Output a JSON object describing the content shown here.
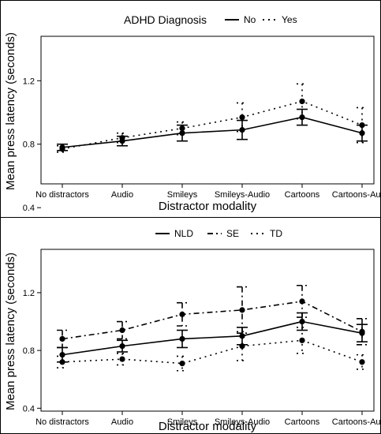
{
  "chart_data": [
    {
      "type": "line",
      "legend_title": "ADHD Diagnosis",
      "legend_placement": "top",
      "xlabel": "Distractor modality",
      "ylabel": "Mean press latency (seconds)",
      "ylim": [
        0.55,
        1.48
      ],
      "yticks": [
        0.4,
        0.8,
        1.2
      ],
      "ytick_labels": [
        "0.4",
        "0.8",
        "1.2"
      ],
      "grid": false,
      "categories": [
        "No distractors",
        "Audio",
        "Smileys",
        "Smileys-Audio",
        "Cartoons",
        "Cartoons-Audio"
      ],
      "series": [
        {
          "name": "No",
          "line_style": "solid",
          "values": [
            0.78,
            0.82,
            0.87,
            0.89,
            0.97,
            0.87
          ],
          "err": [
            0.02,
            0.03,
            0.05,
            0.06,
            0.05,
            0.05
          ]
        },
        {
          "name": "Yes",
          "line_style": "dotted",
          "values": [
            0.77,
            0.84,
            0.9,
            0.97,
            1.07,
            0.92
          ],
          "err": [
            0.02,
            0.03,
            0.04,
            0.09,
            0.11,
            0.11
          ]
        }
      ]
    },
    {
      "type": "line",
      "legend_title": "",
      "legend_placement": "top",
      "xlabel": "Distractor modality",
      "ylabel": "Mean press latency (seconds)",
      "ylim": [
        0.38,
        1.5
      ],
      "yticks": [
        0.4,
        0.8,
        1.2
      ],
      "ytick_labels": [
        "0.4",
        "0.8",
        "1.2"
      ],
      "grid": false,
      "categories": [
        "No distractors",
        "Audio",
        "Smileys",
        "Smileys-Audio",
        "Cartoons",
        "Cartoons-Audio"
      ],
      "series": [
        {
          "name": "NLD",
          "line_style": "solid",
          "values": [
            0.77,
            0.83,
            0.88,
            0.9,
            1.0,
            0.92
          ],
          "err": [
            0.05,
            0.04,
            0.06,
            0.06,
            0.06,
            0.06
          ]
        },
        {
          "name": "SE",
          "line_style": "dashdot",
          "values": [
            0.88,
            0.94,
            1.05,
            1.08,
            1.14,
            0.93
          ],
          "err": [
            0.06,
            0.06,
            0.08,
            0.16,
            0.11,
            0.09
          ]
        },
        {
          "name": "TD",
          "line_style": "dotted",
          "values": [
            0.72,
            0.74,
            0.71,
            0.83,
            0.87,
            0.72
          ],
          "err": [
            0.04,
            0.04,
            0.05,
            0.1,
            0.09,
            0.05
          ]
        }
      ]
    }
  ]
}
